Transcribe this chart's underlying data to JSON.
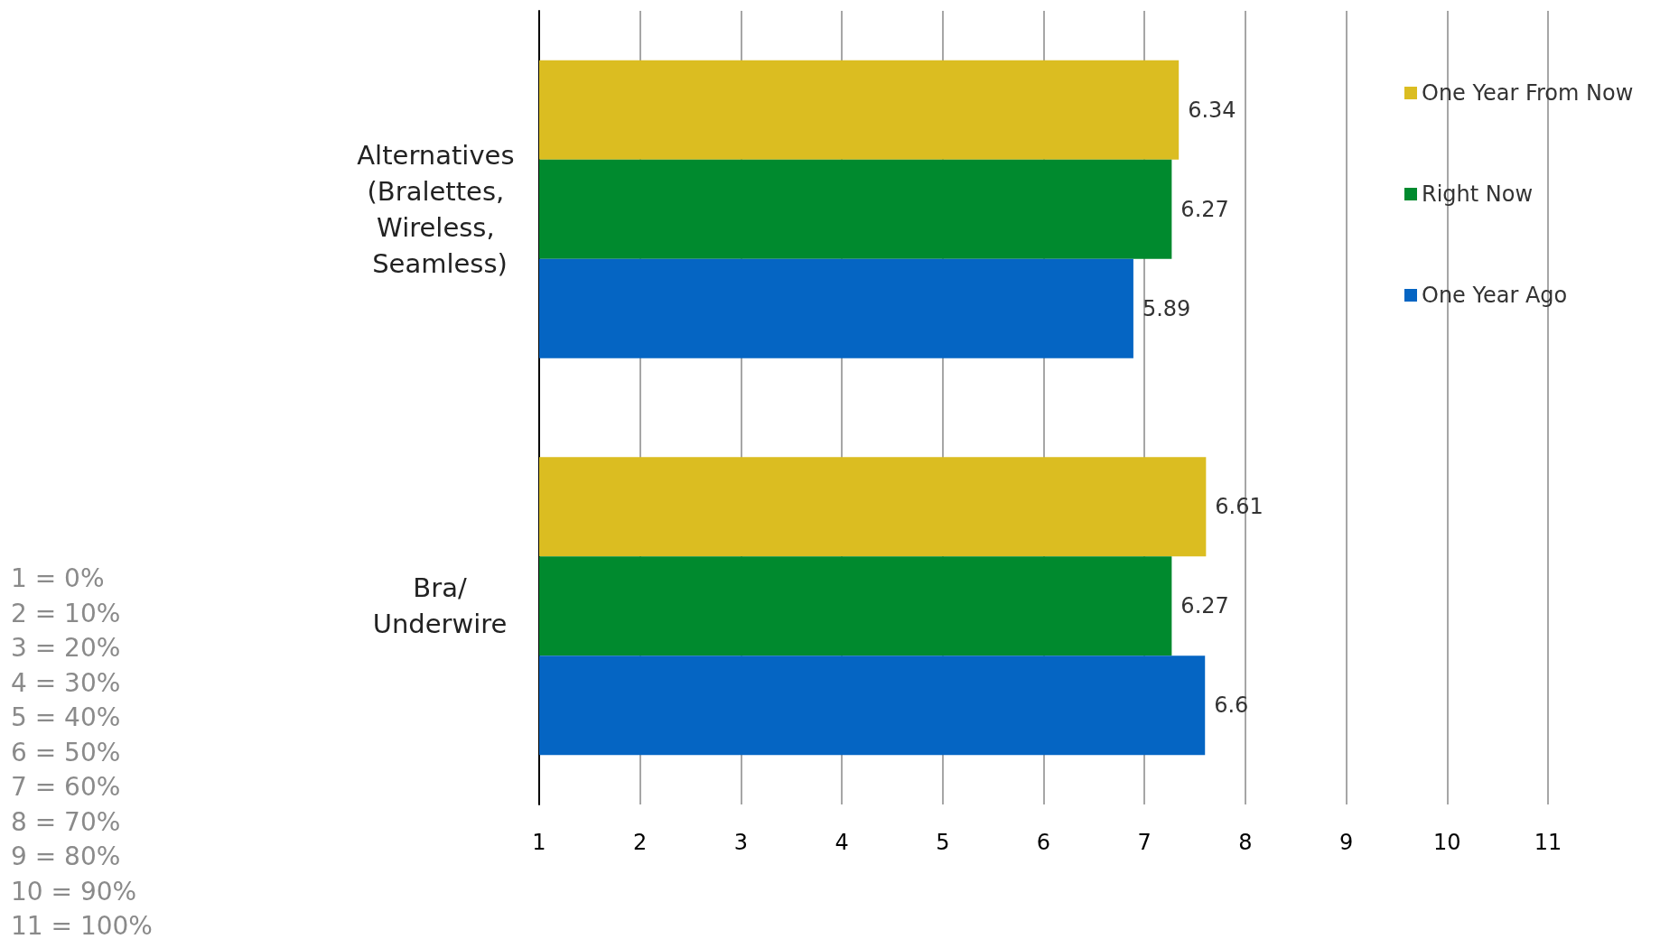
{
  "chart_data": {
    "type": "bar",
    "orientation": "horizontal",
    "categories": [
      "Alternatives (Bralettes, Wireless, Seamless)",
      "Bra/Underwire"
    ],
    "series": [
      {
        "name": "One Year From Now",
        "color": "#dbbd21",
        "values": [
          6.34,
          6.61
        ],
        "base": [
          1,
          1
        ]
      },
      {
        "name": "Right Now",
        "color": "#008a2e",
        "values": [
          6.27,
          6.27
        ],
        "base": [
          1,
          1
        ]
      },
      {
        "name": "One Year Ago",
        "color": "#0565c3",
        "values": [
          5.89,
          6.6
        ],
        "base": [
          1,
          1
        ]
      }
    ],
    "xlim": [
      1,
      11
    ],
    "xticks": [
      1,
      2,
      3,
      4,
      5,
      6,
      7,
      8,
      9,
      10,
      11
    ],
    "grid": "x",
    "legend": "top right",
    "data_labels": true,
    "annotations": [
      "1 = 0%",
      "2 = 10%",
      "3 = 20%",
      "4 = 30%",
      "5 = 40%",
      "6 = 50%",
      "7 = 60%",
      "8 = 70%",
      "9 = 80%",
      "10 = 90%",
      "11 = 100%"
    ]
  }
}
